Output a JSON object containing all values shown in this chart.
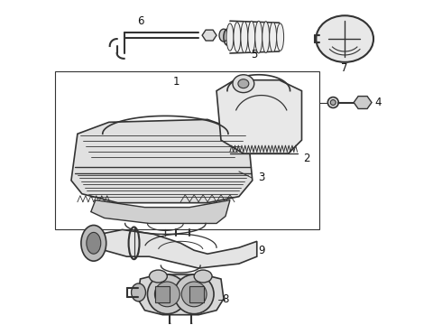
{
  "bg_color": "#ffffff",
  "line_color": "#333333",
  "fig_width": 4.9,
  "fig_height": 3.6,
  "dpi": 100,
  "label_fontsize": 8.5
}
